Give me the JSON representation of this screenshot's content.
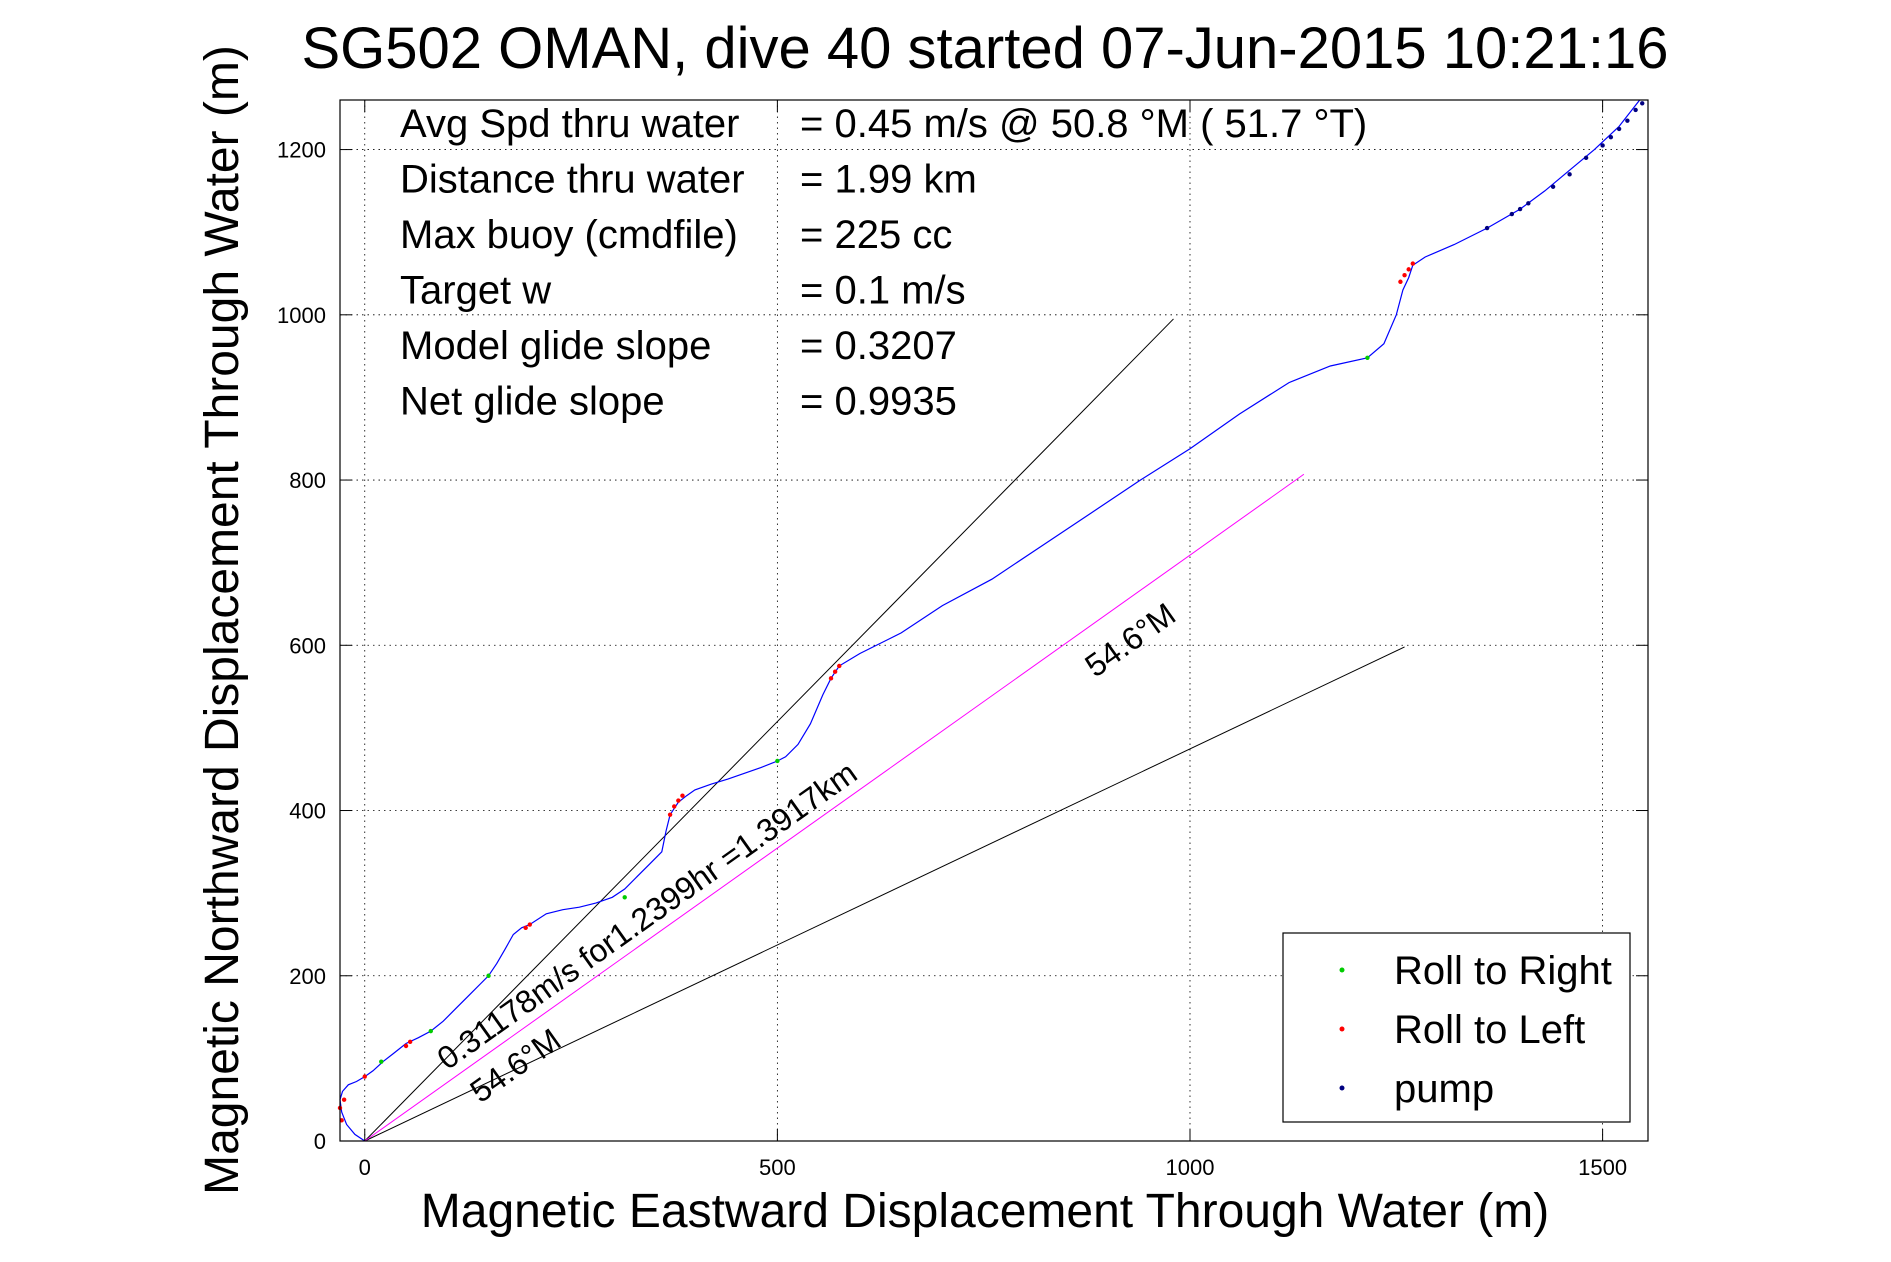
{
  "chart_data": {
    "type": "line",
    "title": "SG502 OMAN, dive 40 started 07-Jun-2015 10:21:16",
    "xlabel": "Magnetic Eastward Displacement Through Water (m)",
    "ylabel": "Magnetic Northward Displacement Through Water (m)",
    "xlim": [
      -30,
      1555
    ],
    "ylim": [
      0,
      1260
    ],
    "x_ticks": [
      0,
      500,
      1000,
      1500
    ],
    "x_tick_labels": [
      "0",
      "500",
      "1000",
      "1500"
    ],
    "y_ticks": [
      0,
      200,
      400,
      600,
      800,
      1000,
      1200
    ],
    "y_tick_labels": [
      "0",
      "200",
      "400",
      "600",
      "800",
      "1000",
      "1200"
    ],
    "grid": true,
    "legend_position": "bottom-right",
    "info_lines": [
      {
        "label": "Avg Spd thru water",
        "value": "=  0.45 m/s @  50.8 °M ( 51.7 °T)"
      },
      {
        "label": "Distance thru water",
        "value": "=  1.99 km"
      },
      {
        "label": "Max buoy (cmdfile)",
        "value": "= 225 cc"
      },
      {
        "label": "Target w",
        "value": "= 0.1 m/s"
      },
      {
        "label": "Model glide slope",
        "value": "= 0.3207"
      },
      {
        "label": "Net glide slope",
        "value": "= 0.9935"
      }
    ],
    "series": [
      {
        "name": "track",
        "color": "#0000ff",
        "x": [
          0,
          -12,
          -22,
          -28,
          -30,
          -27,
          -20,
          -10,
          0,
          10,
          22,
          35,
          50,
          65,
          80,
          95,
          110,
          125,
          140,
          150,
          160,
          170,
          180,
          190,
          200,
          220,
          240,
          260,
          280,
          300,
          315,
          330,
          345,
          360,
          365,
          370,
          380,
          390,
          400,
          420,
          440,
          460,
          480,
          500,
          510,
          525,
          540,
          555,
          565,
          575,
          600,
          650,
          700,
          760,
          820,
          880,
          940,
          1000,
          1060,
          1120,
          1170,
          1215,
          1235,
          1250,
          1258,
          1265,
          1270,
          1285,
          1320,
          1360,
          1400,
          1430,
          1460,
          1490,
          1520,
          1545
        ],
        "y": [
          0,
          8,
          20,
          35,
          50,
          60,
          68,
          72,
          78,
          85,
          96,
          106,
          118,
          125,
          133,
          145,
          160,
          175,
          190,
          200,
          215,
          232,
          250,
          258,
          262,
          275,
          280,
          283,
          288,
          295,
          305,
          320,
          335,
          350,
          375,
          395,
          410,
          418,
          425,
          432,
          438,
          445,
          452,
          460,
          465,
          480,
          505,
          540,
          560,
          575,
          590,
          615,
          648,
          680,
          720,
          760,
          800,
          838,
          880,
          918,
          938,
          948,
          965,
          1000,
          1030,
          1045,
          1060,
          1070,
          1085,
          1105,
          1128,
          1150,
          1175,
          1200,
          1228,
          1260
        ]
      },
      {
        "name": "Roll to Right",
        "color": "#00cc00",
        "x": [
          20,
          80,
          150,
          315,
          500,
          1215
        ],
        "y": [
          96,
          133,
          200,
          295,
          460,
          948
        ]
      },
      {
        "name": "Roll to Left",
        "color": "#ff0000",
        "x": [
          -30,
          -25,
          -28,
          0,
          50,
          55,
          200,
          195,
          370,
          375,
          380,
          385,
          565,
          570,
          575,
          1255,
          1260,
          1265,
          1270
        ],
        "y": [
          40,
          50,
          25,
          78,
          115,
          120,
          262,
          258,
          395,
          405,
          412,
          418,
          560,
          568,
          575,
          1040,
          1048,
          1055,
          1062
        ]
      },
      {
        "name": "pump",
        "color": "#000080",
        "x": [
          1360,
          1390,
          1400,
          1410,
          1440,
          1460,
          1480,
          1500,
          1510,
          1520,
          1530,
          1540,
          1548
        ],
        "y": [
          1105,
          1122,
          1128,
          1135,
          1155,
          1170,
          1190,
          1205,
          1215,
          1225,
          1235,
          1248,
          1256
        ]
      }
    ],
    "reference_lines": [
      {
        "name": "glide-line-upper",
        "color": "#000000",
        "x": [
          0,
          980
        ],
        "y": [
          0,
          995
        ]
      },
      {
        "name": "glide-line-lower",
        "color": "#000000",
        "x": [
          0,
          1260
        ],
        "y": [
          0,
          598
        ]
      },
      {
        "name": "net-heading-line",
        "color": "#ff00ff",
        "x": [
          0,
          1138
        ],
        "y": [
          0,
          807
        ]
      }
    ],
    "annotations": [
      {
        "text": "0.31178m/s for1.2399hr =1.3917km",
        "x": 100,
        "y": 85,
        "angle": 35.4
      },
      {
        "text": "54.6°M",
        "x": 140,
        "y": 45,
        "angle": 35.4
      },
      {
        "text": "54.6°M",
        "x": 885,
        "y": 560,
        "angle": 35.4
      }
    ]
  }
}
